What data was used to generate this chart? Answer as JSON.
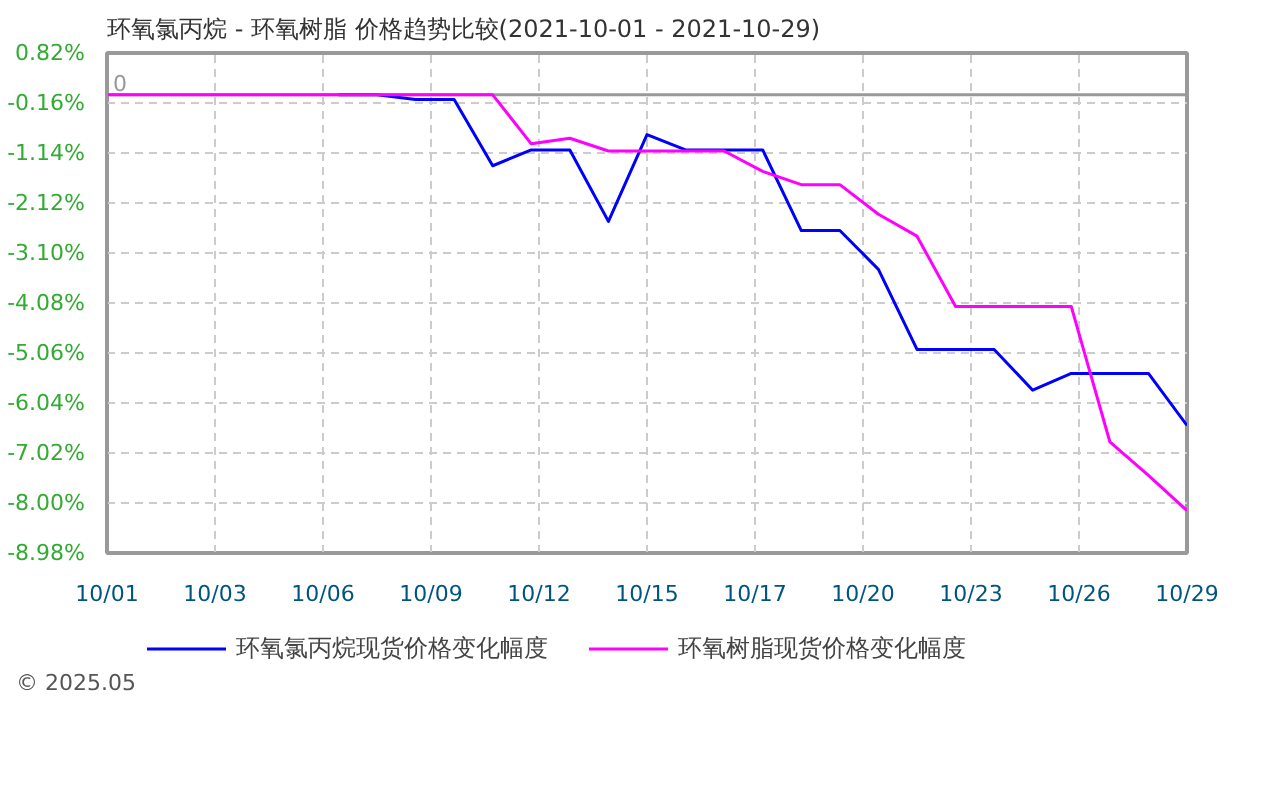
{
  "chart_data": {
    "type": "line",
    "title": "环氧氯丙烷 - 环氧树脂 价格趋势比较(2021-10-01 - 2021-10-29)",
    "x": [
      "2021-10-01",
      "2021-10-02",
      "2021-10-03",
      "2021-10-04",
      "2021-10-05",
      "2021-10-06",
      "2021-10-07",
      "2021-10-08",
      "2021-10-09",
      "2021-10-10",
      "2021-10-11",
      "2021-10-12",
      "2021-10-13",
      "2021-10-14",
      "2021-10-15",
      "2021-10-16",
      "2021-10-17",
      "2021-10-18",
      "2021-10-19",
      "2021-10-20",
      "2021-10-21",
      "2021-10-22",
      "2021-10-23",
      "2021-10-24",
      "2021-10-25",
      "2021-10-26",
      "2021-10-27",
      "2021-10-28",
      "2021-10-29"
    ],
    "series": [
      {
        "name": "环氧氯丙烷现货价格变化幅度",
        "color": "#0000ff",
        "values": [
          null,
          null,
          null,
          null,
          null,
          null,
          0,
          0,
          -0.09,
          -0.09,
          -1.39,
          -1.08,
          -1.08,
          -2.48,
          -0.78,
          -1.08,
          -1.08,
          -1.08,
          -2.66,
          -2.66,
          -3.42,
          -4.99,
          -4.99,
          -4.99,
          -5.79,
          -5.46,
          -5.46,
          -5.46,
          -6.48
        ]
      },
      {
        "name": "环氧树脂现货价格变化幅度",
        "color": "#ff00ff",
        "values": [
          0,
          0,
          0,
          0,
          0,
          0,
          0,
          0,
          0,
          0,
          0,
          -0.96,
          -0.85,
          -1.1,
          -1.1,
          -1.1,
          -1.1,
          -1.5,
          -1.76,
          -1.76,
          -2.34,
          -2.77,
          -4.15,
          -4.15,
          -4.15,
          -4.15,
          -6.8,
          -7.46,
          -8.15
        ]
      }
    ],
    "xlim": [
      "2021-10-01",
      "2021-10-29"
    ],
    "xticks": [
      {
        "value": "2021-10-01",
        "label": "10/01"
      },
      {
        "value": "2021-10-03T19:12",
        "label": "10/03"
      },
      {
        "value": "2021-10-06T14:24",
        "label": "10/06"
      },
      {
        "value": "2021-10-09T09:36",
        "label": "10/09"
      },
      {
        "value": "2021-10-12T04:48",
        "label": "10/12"
      },
      {
        "value": "2021-10-15",
        "label": "10/15"
      },
      {
        "value": "2021-10-17T19:12",
        "label": "10/17"
      },
      {
        "value": "2021-10-20T14:24",
        "label": "10/20"
      },
      {
        "value": "2021-10-23T09:36",
        "label": "10/23"
      },
      {
        "value": "2021-10-26T04:48",
        "label": "10/26"
      },
      {
        "value": "2021-10-29",
        "label": "10/29"
      }
    ],
    "ylim": [
      -8.98,
      0.82
    ],
    "yticks": [
      {
        "value": 0.82,
        "label": "0.82%"
      },
      {
        "value": -0.16,
        "label": "-0.16%"
      },
      {
        "value": -1.14,
        "label": "-1.14%"
      },
      {
        "value": -2.12,
        "label": "-2.12%"
      },
      {
        "value": -3.1,
        "label": "-3.10%"
      },
      {
        "value": -4.08,
        "label": "-4.08%"
      },
      {
        "value": -5.06,
        "label": "-5.06%"
      },
      {
        "value": -6.04,
        "label": "-6.04%"
      },
      {
        "value": -7.02,
        "label": "-7.02%"
      },
      {
        "value": -8.0,
        "label": "-8.00%"
      },
      {
        "value": -8.98,
        "label": "-8.98%"
      }
    ],
    "ref_lines": [
      {
        "axis": "y",
        "value": 0,
        "label": "0",
        "color": "#999999"
      }
    ],
    "grid": true,
    "legend": "bottom",
    "marker": "none",
    "line_style": "solid",
    "annotations": [
      "© 2025.05"
    ]
  }
}
